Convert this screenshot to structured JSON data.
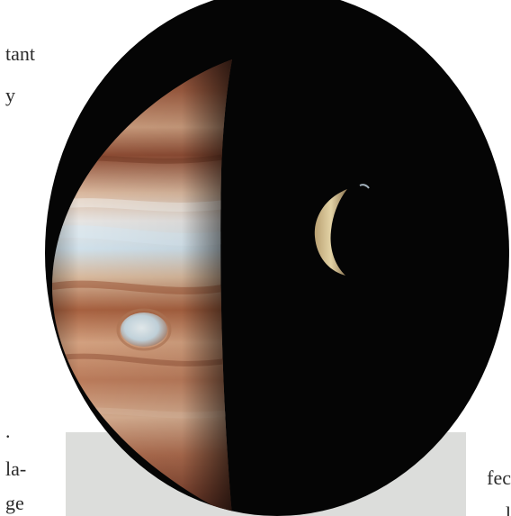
{
  "text_fragments": {
    "top_1": "tant",
    "top_2": "y",
    "bottom_1": ".",
    "bottom_2": "la-",
    "bottom_3": "ge",
    "right_1": "fec",
    "right_2": "l"
  },
  "colors": {
    "background": "#ffffff",
    "space": "#050505",
    "grey_panel": "#dcdddb",
    "jupiter_band_light": "#e3c9b0",
    "jupiter_band_dark": "#9a5236",
    "great_red_spot": "#c8d8e0",
    "io_moon": "#d8c79a"
  }
}
